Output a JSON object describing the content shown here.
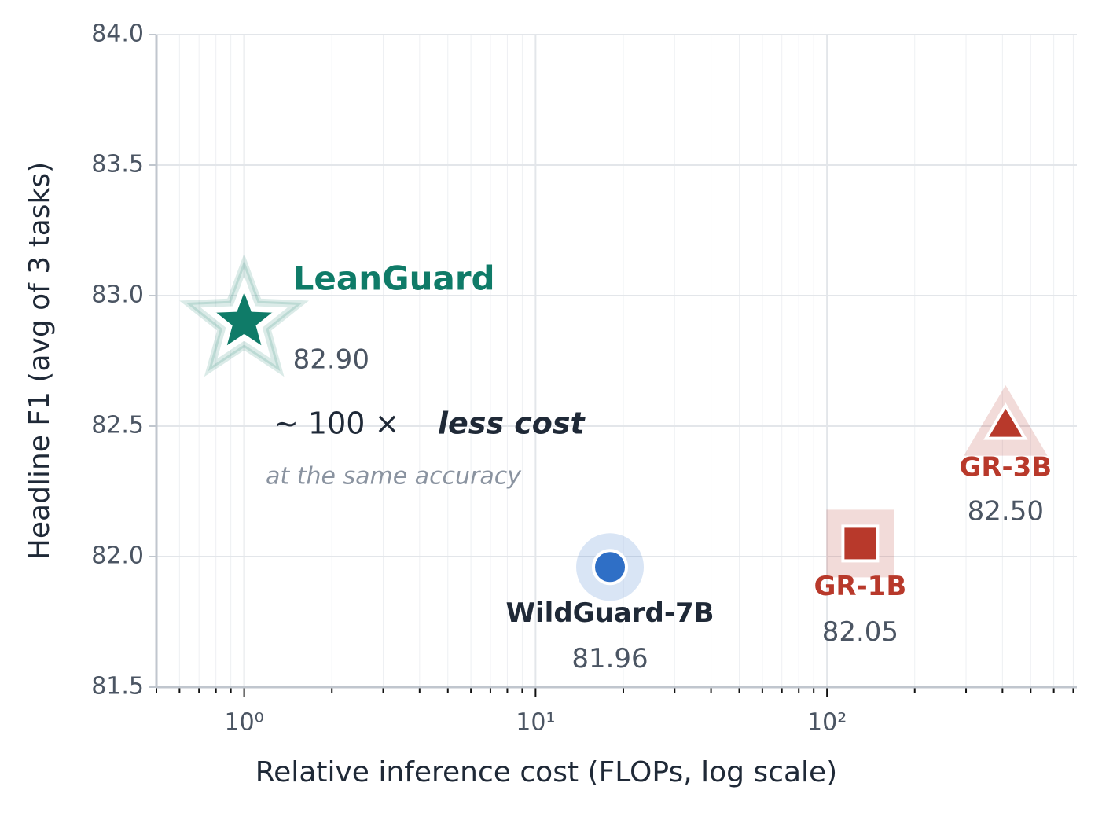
{
  "chart_data": {
    "type": "scatter",
    "xlabel": "Relative inference cost (FLOPs, log scale)",
    "ylabel": "Headline F1 (avg of 3 tasks)",
    "xscale": "log",
    "grid": true,
    "xlim": [
      0.5,
      720
    ],
    "ylim": [
      81.5,
      84.0
    ],
    "xticks": [
      {
        "value": 1,
        "label": "10⁰"
      },
      {
        "value": 10,
        "label": "10¹"
      },
      {
        "value": 100,
        "label": "10²"
      }
    ],
    "xminorticks": [
      0.5,
      0.6,
      0.7,
      0.8,
      0.9,
      2,
      3,
      4,
      5,
      6,
      7,
      8,
      9,
      20,
      30,
      40,
      50,
      60,
      70,
      80,
      90,
      200,
      300,
      400,
      500,
      600,
      700
    ],
    "yticks": [
      81.5,
      {
        "value": 82,
        "label": "82.0"
      },
      82.5,
      {
        "value": 83,
        "label": "83.0"
      },
      83.5,
      {
        "value": 84,
        "label": "84.0"
      }
    ],
    "series": [
      {
        "name": "LeanGuard",
        "color": "#0f7b68",
        "label_color": "#0f7b68",
        "marker": "star",
        "x": [
          1
        ],
        "values": [
          82.9
        ],
        "value_labels": [
          "82.90"
        ]
      },
      {
        "name": "WildGuard-7B",
        "color": "#2f6fc6",
        "label_color": "#1f2937",
        "marker": "circle",
        "x": [
          18
        ],
        "values": [
          81.96
        ]
      },
      {
        "name": "GR-1B",
        "color": "#b8392b",
        "label_color": "#b8392b",
        "marker": "square",
        "x": [
          130
        ],
        "values": [
          82.05
        ]
      },
      {
        "name": "GR-3B",
        "color": "#b8392b",
        "label_color": "#b8392b",
        "marker": "triangle",
        "x": [
          410
        ],
        "values": [
          82.5
        ],
        "value_labels": [
          "82.50"
        ]
      }
    ],
    "annotation": {
      "text": "~ 100 ×",
      "emphasis": "less cost",
      "note": "at the same accuracy"
    }
  }
}
